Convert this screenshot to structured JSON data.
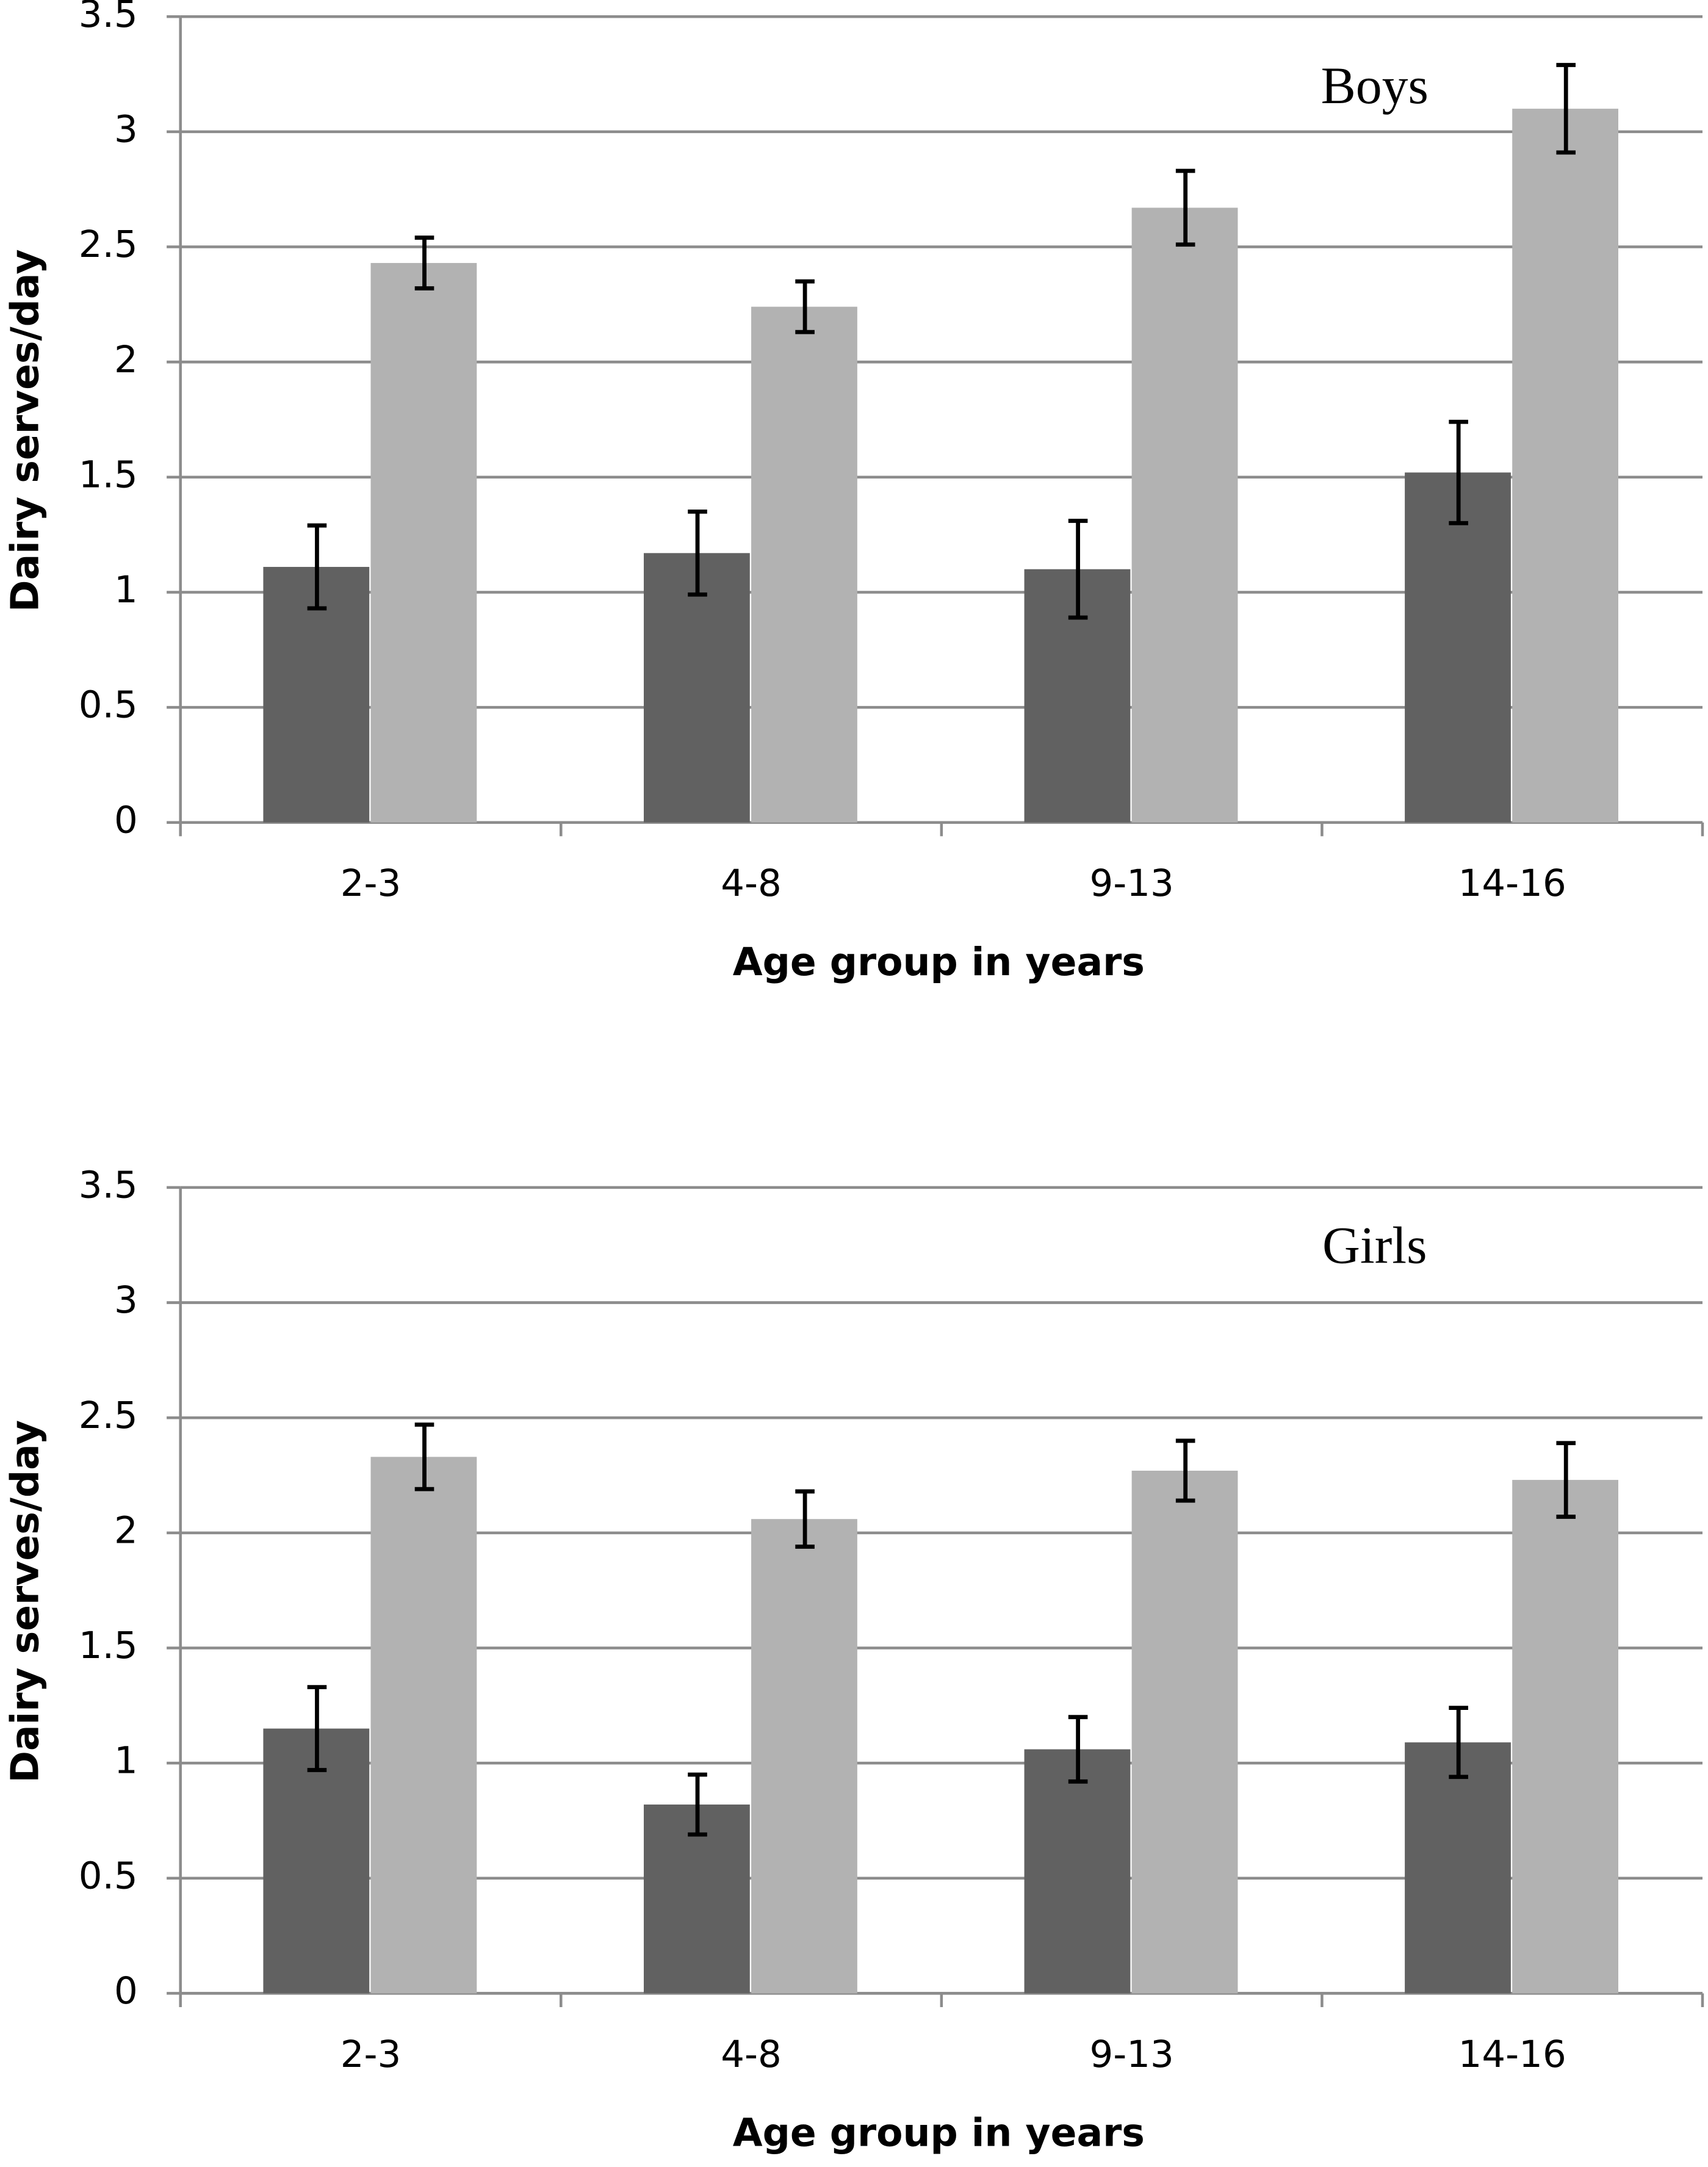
{
  "chart_data": [
    {
      "type": "bar",
      "annotation": "Boys",
      "x_label": "Age group in years",
      "y_label": "Dairy serves/day",
      "categories": [
        "2-3",
        "4-8",
        "9-13",
        "14-16"
      ],
      "series": [
        {
          "color": "#616161",
          "values": [
            1.11,
            1.17,
            1.1,
            1.52
          ],
          "errors": [
            0.18,
            0.18,
            0.21,
            0.22
          ]
        },
        {
          "color": "#b2b2b2",
          "values": [
            2.43,
            2.24,
            2.67,
            3.1
          ],
          "errors": [
            0.11,
            0.11,
            0.16,
            0.19
          ]
        }
      ],
      "ylim": [
        0,
        3.5
      ],
      "yticks": [
        0,
        0.5,
        1,
        1.5,
        2,
        2.5,
        3,
        3.5
      ],
      "grid": true
    },
    {
      "type": "bar",
      "annotation": "Girls",
      "x_label": "Age group in years",
      "y_label": "Dairy serves/day",
      "categories": [
        "2-3",
        "4-8",
        "9-13",
        "14-16"
      ],
      "series": [
        {
          "color": "#616161",
          "values": [
            1.15,
            0.82,
            1.06,
            1.09
          ],
          "errors": [
            0.18,
            0.13,
            0.14,
            0.15
          ]
        },
        {
          "color": "#b2b2b2",
          "values": [
            2.33,
            2.06,
            2.27,
            2.23
          ],
          "errors": [
            0.14,
            0.12,
            0.13,
            0.16
          ]
        }
      ],
      "ylim": [
        0,
        3.5
      ],
      "yticks": [
        0,
        0.5,
        1,
        1.5,
        2,
        2.5,
        3,
        3.5
      ],
      "grid": true
    }
  ]
}
